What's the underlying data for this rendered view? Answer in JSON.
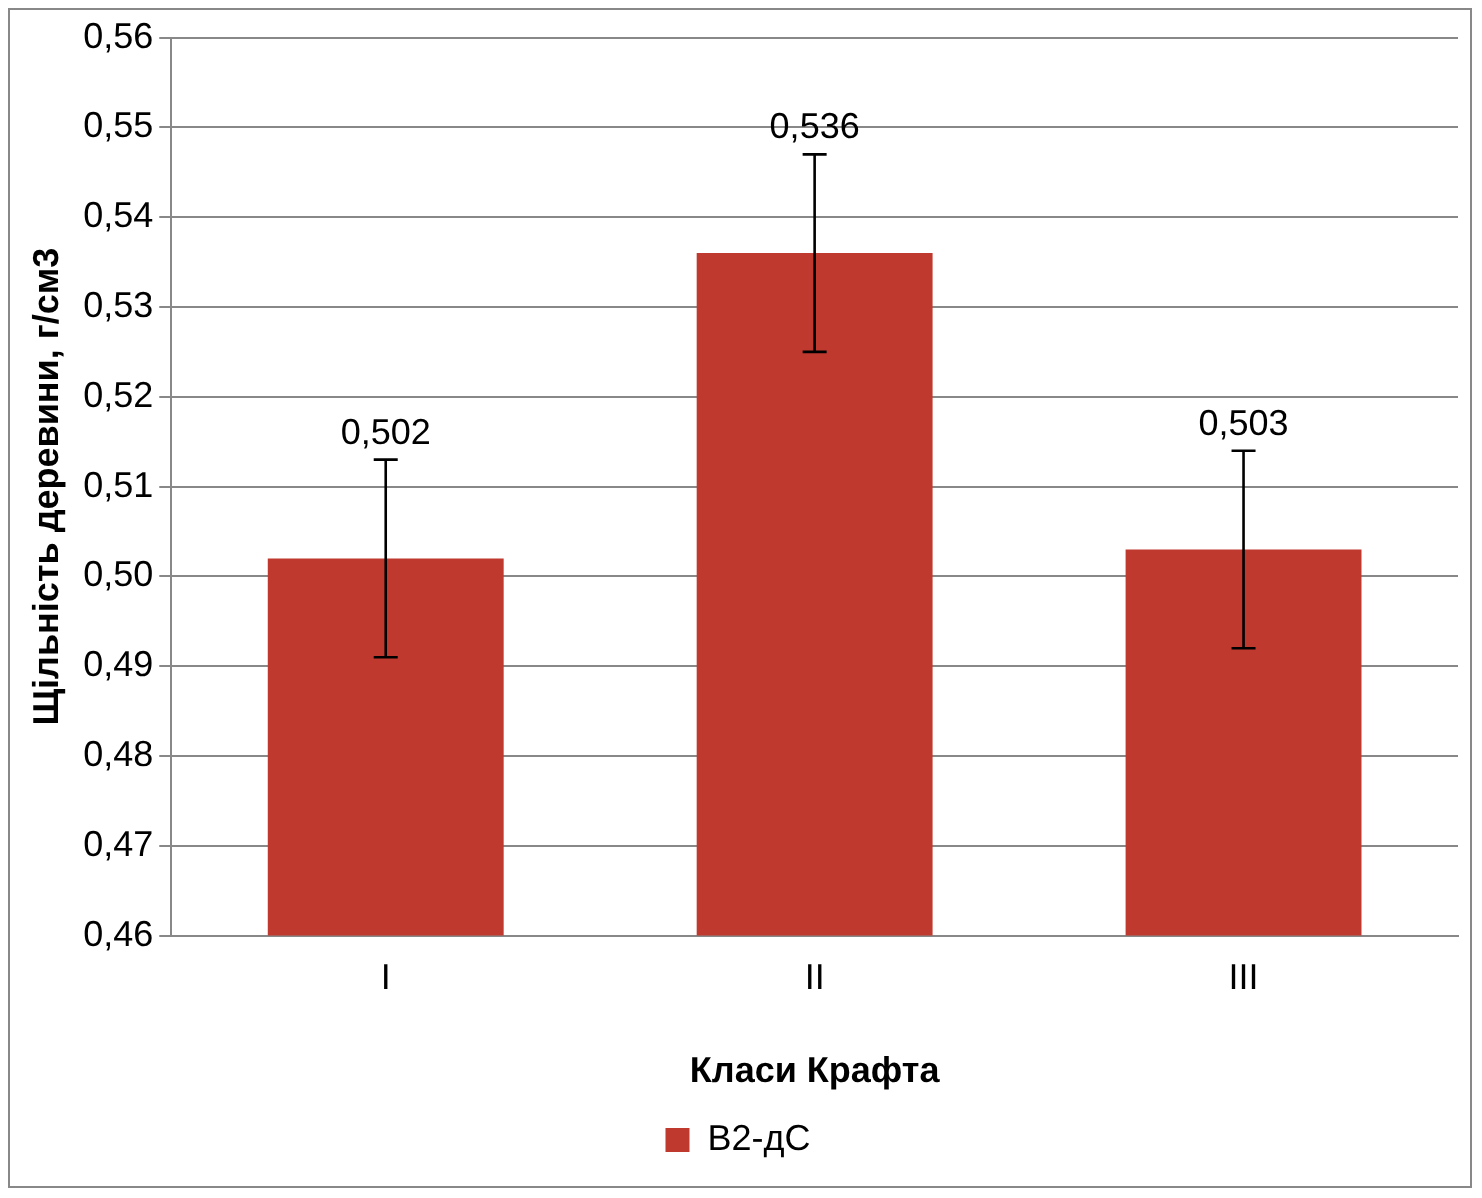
{
  "chart_data": {
    "type": "bar",
    "xlabel": "Класи Крафта",
    "ylabel": "Щільність деревини, г/см3",
    "categories": [
      "I",
      "II",
      "III"
    ],
    "series": [
      {
        "name": "В2-дС",
        "color": "#c0392f",
        "values": [
          0.502,
          0.536,
          0.503
        ],
        "errors": [
          0.011,
          0.011,
          0.011
        ],
        "value_labels": [
          "0,502",
          "0,536",
          "0,503"
        ]
      }
    ],
    "ylim": [
      0.46,
      0.56
    ],
    "yticks": [
      {
        "value": 0.46,
        "label": "0,46"
      },
      {
        "value": 0.47,
        "label": "0,47"
      },
      {
        "value": 0.48,
        "label": "0,48"
      },
      {
        "value": 0.49,
        "label": "0,49"
      },
      {
        "value": 0.5,
        "label": "0,50"
      },
      {
        "value": 0.51,
        "label": "0,51"
      },
      {
        "value": 0.52,
        "label": "0,52"
      },
      {
        "value": 0.53,
        "label": "0,53"
      },
      {
        "value": 0.54,
        "label": "0,54"
      },
      {
        "value": 0.55,
        "label": "0,55"
      },
      {
        "value": 0.56,
        "label": "0,56"
      }
    ],
    "grid": "y",
    "legend": "bottom"
  }
}
